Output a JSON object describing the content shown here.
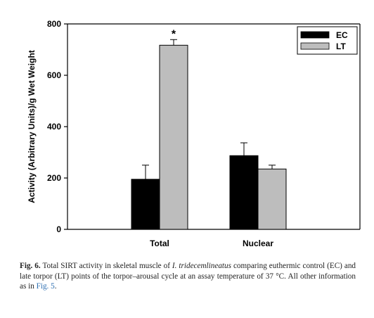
{
  "chart_data": {
    "type": "bar",
    "categories": [
      "Total",
      "Nuclear"
    ],
    "series": [
      {
        "name": "EC",
        "values": [
          195,
          287
        ],
        "errors": [
          55,
          50
        ],
        "color": "#000000"
      },
      {
        "name": "LT",
        "values": [
          717,
          235
        ],
        "errors": [
          22,
          15
        ],
        "color": "#bdbdbd"
      }
    ],
    "ylabel": "Activity (Arbitrary Units)/g Wet Weight",
    "xlabel": "",
    "ylim": [
      0,
      800
    ],
    "yticks": [
      "0",
      "200",
      "400",
      "600",
      "800"
    ],
    "annotations": [
      {
        "text": "*",
        "category": "Total",
        "series": "LT"
      }
    ],
    "legend_position": "top-right",
    "grid": false
  },
  "caption": {
    "label": "Fig. 6.",
    "text_1": "Total SIRT activity in skeletal muscle of",
    "species": "I. tridecemlineatus",
    "text_2": "comparing euthermic control (EC) and late torpor (LT) points of the torpor–arousal cycle at an assay temperature of 37 °C. All other information as in",
    "ref": "Fig. 5",
    "end": "."
  }
}
